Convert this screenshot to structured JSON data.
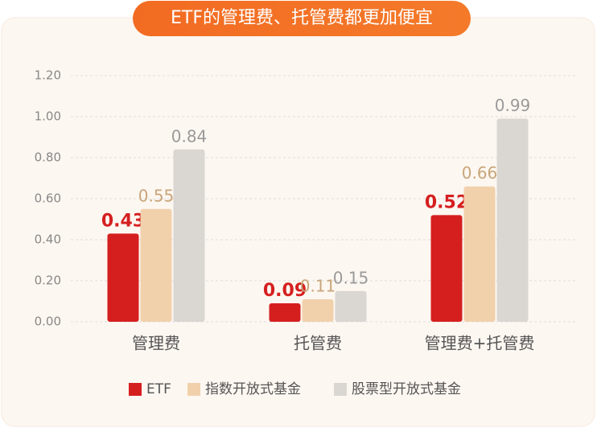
{
  "chart_data": {
    "type": "bar",
    "title": "ETF的管理费、托管费都更加便宜",
    "categories": [
      "管理费",
      "托管费",
      "管理费+托管费"
    ],
    "series": [
      {
        "name": "ETF",
        "color": "#d51f1f",
        "label_color": "#d51f1f",
        "values": [
          0.43,
          0.09,
          0.52
        ]
      },
      {
        "name": "指数开放式基金",
        "color": "#f1d1ac",
        "label_color": "#c8a67a",
        "values": [
          0.55,
          0.11,
          0.66
        ]
      },
      {
        "name": "股票型开放式基金",
        "color": "#dad6d2",
        "label_color": "#9a9a9a",
        "values": [
          0.84,
          0.15,
          0.99
        ]
      }
    ],
    "ylim": [
      0,
      1.2
    ],
    "yticks": [
      {
        "value": 0,
        "label": "0.00"
      },
      {
        "value": 0.2,
        "label": "0.20"
      },
      {
        "value": 0.4,
        "label": "0.40"
      },
      {
        "value": 0.6,
        "label": "0.60"
      },
      {
        "value": 0.8,
        "label": "0.80"
      },
      {
        "value": 1,
        "label": "1.00"
      },
      {
        "value": 1.2,
        "label": "1.20"
      }
    ],
    "grid": true
  }
}
